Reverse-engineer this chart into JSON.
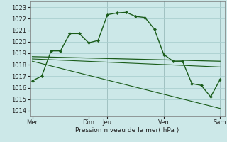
{
  "title": "",
  "xlabel": "Pression niveau de la mer( hPa )",
  "bg_color": "#cce8e8",
  "grid_color": "#aacfcf",
  "line_color": "#1a5c1a",
  "ylim": [
    1013.5,
    1023.5
  ],
  "yticks": [
    1014,
    1015,
    1016,
    1017,
    1018,
    1019,
    1020,
    1021,
    1022,
    1023
  ],
  "xtick_labels": [
    "Mer",
    "Dim",
    "Jeu",
    "Ven",
    "Sam"
  ],
  "xtick_positions": [
    0,
    6,
    8,
    14,
    20
  ],
  "line1_x": [
    0,
    1,
    2,
    3,
    4,
    5,
    6,
    7,
    8,
    9,
    10,
    11,
    12,
    13,
    14,
    15,
    16,
    17,
    18,
    19,
    20
  ],
  "line1_y": [
    1016.6,
    1017.0,
    1019.2,
    1019.2,
    1020.7,
    1020.7,
    1019.9,
    1020.1,
    1022.35,
    1022.5,
    1022.55,
    1022.2,
    1022.1,
    1021.1,
    1018.9,
    1018.3,
    1018.3,
    1016.35,
    1016.2,
    1015.2,
    1016.7
  ],
  "line2_x": [
    0,
    20
  ],
  "line2_y": [
    1018.7,
    1018.3
  ],
  "line3_x": [
    0,
    20
  ],
  "line3_y": [
    1018.5,
    1017.8
  ],
  "line4_x": [
    0,
    20
  ],
  "line4_y": [
    1018.3,
    1014.2
  ],
  "vlines_x": [
    0,
    6,
    8,
    14,
    17,
    20
  ],
  "vline_color": "#555555",
  "fig_width": 3.2,
  "fig_height": 2.0,
  "dpi": 100
}
